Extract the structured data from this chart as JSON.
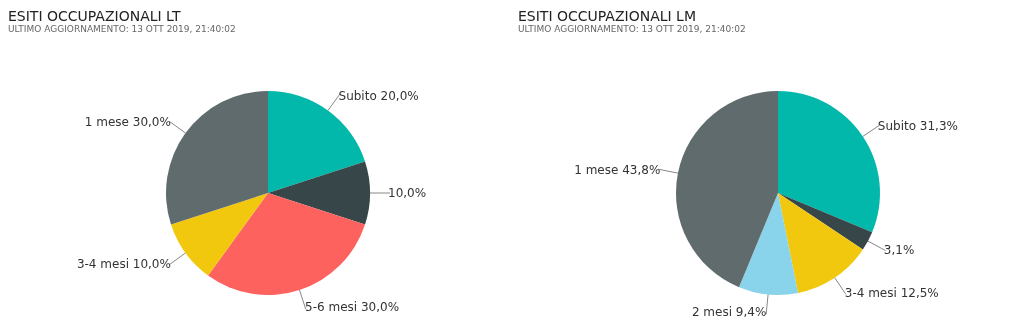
{
  "chart_data": [
    {
      "type": "pie",
      "title": "ESITI OCCUPAZIONALI LT",
      "subtitle": "ULTIMO AGGIORNAMENTO: 13 OTT 2019, 21:40:02",
      "categories": [
        "Subito",
        null,
        "5-6 mesi",
        "3-4 mesi",
        "1 mese"
      ],
      "values": [
        20,
        10,
        30,
        10,
        30
      ],
      "value_labels": [
        "20,0%",
        "10,0%",
        "30,0%",
        "10,0%",
        "30,0%"
      ],
      "colors": [
        "#01b8aa",
        "#374649",
        "#fd625e",
        "#f2c80f",
        "#5f6b6d"
      ]
    },
    {
      "type": "pie",
      "title": "ESITI OCCUPAZIONALI LM",
      "subtitle": "ULTIMO AGGIORNAMENTO: 13 OTT 2019, 21:40:02",
      "categories": [
        "Subito",
        null,
        "3-4 mesi",
        "2 mesi",
        "1 mese"
      ],
      "values": [
        31.3,
        3.1,
        12.5,
        9.4,
        43.8
      ],
      "value_labels": [
        "31,3%",
        "3,1%",
        "12,5%",
        "9,4%",
        "43,8%"
      ],
      "colors": [
        "#01b8aa",
        "#374649",
        "#f2c80f",
        "#8ad4eb",
        "#5f6b6d"
      ]
    }
  ]
}
